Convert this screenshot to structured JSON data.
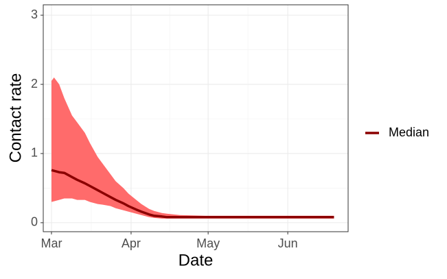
{
  "chart_data": {
    "type": "line",
    "x_label": "Date",
    "y_label": "Contact rate",
    "x": [
      0,
      1,
      3,
      5,
      8,
      10,
      13,
      15,
      18,
      20,
      23,
      25,
      28,
      30,
      33,
      35,
      38,
      40,
      43,
      45,
      50,
      60,
      70,
      80,
      90,
      100,
      110
    ],
    "series": [
      {
        "name": "Median",
        "color": "#8b0000",
        "values": [
          0.76,
          0.75,
          0.73,
          0.72,
          0.66,
          0.62,
          0.57,
          0.53,
          0.47,
          0.43,
          0.37,
          0.33,
          0.28,
          0.24,
          0.19,
          0.16,
          0.12,
          0.1,
          0.09,
          0.08,
          0.08,
          0.08,
          0.08,
          0.08,
          0.08,
          0.08,
          0.08
        ]
      }
    ],
    "band": {
      "color": "#ff6b6b",
      "lower": [
        0.3,
        0.31,
        0.33,
        0.35,
        0.35,
        0.33,
        0.33,
        0.3,
        0.27,
        0.26,
        0.24,
        0.21,
        0.18,
        0.16,
        0.13,
        0.11,
        0.08,
        0.07,
        0.06,
        0.06,
        0.06,
        0.06,
        0.06,
        0.06,
        0.06,
        0.06,
        0.06
      ],
      "upper": [
        2.05,
        2.1,
        2.0,
        1.8,
        1.55,
        1.45,
        1.3,
        1.15,
        0.95,
        0.85,
        0.7,
        0.6,
        0.5,
        0.42,
        0.33,
        0.27,
        0.2,
        0.17,
        0.14,
        0.13,
        0.11,
        0.1,
        0.1,
        0.1,
        0.1,
        0.1,
        0.1
      ]
    },
    "xlim": [
      -3.2,
      115.5
    ],
    "xticks": [
      {
        "value": 0,
        "label": "Mar"
      },
      {
        "value": 31,
        "label": "Apr"
      },
      {
        "value": 61,
        "label": "May"
      },
      {
        "value": 92,
        "label": "Jun"
      }
    ],
    "ylim": [
      -0.13,
      3.15
    ],
    "yticks": [
      0,
      1,
      2,
      3
    ],
    "grid": true,
    "legend": "right"
  }
}
